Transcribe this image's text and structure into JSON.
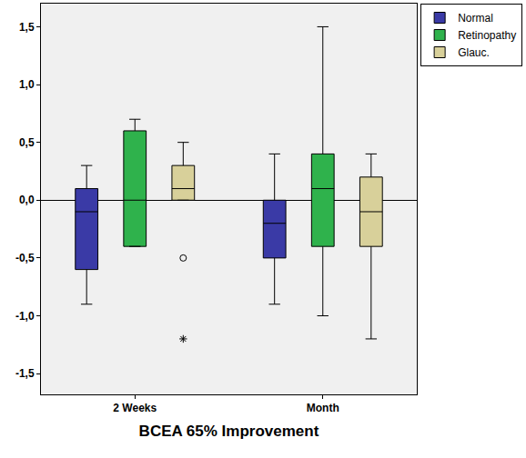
{
  "chart_data": {
    "type": "box",
    "x_label": "BCEA 65% Improvement",
    "categories": [
      "2 Weeks",
      "Month"
    ],
    "series": [
      {
        "name": "Normal",
        "color": "#3a3aa6",
        "upperfence": [
          0.3,
          0.4
        ],
        "q3": [
          0.1,
          0.0
        ],
        "median": [
          -0.1,
          -0.2
        ],
        "q1": [
          -0.6,
          -0.5
        ],
        "lowerfence": [
          -0.9,
          -0.9
        ],
        "outliers": [
          [],
          []
        ]
      },
      {
        "name": "Retinopathy",
        "color": "#2fb24c",
        "upperfence": [
          0.7,
          1.5
        ],
        "q3": [
          0.6,
          0.4
        ],
        "median": [
          0.0,
          0.1
        ],
        "q1": [
          -0.4,
          -0.4
        ],
        "lowerfence": [
          -0.4,
          -1.0
        ],
        "outliers": [
          [],
          []
        ]
      },
      {
        "name": "Glauc.",
        "color": "#d8d09a",
        "upperfence": [
          0.5,
          0.4
        ],
        "q3": [
          0.3,
          0.2
        ],
        "median": [
          0.1,
          -0.1
        ],
        "q1": [
          0.0,
          -0.4
        ],
        "lowerfence": [
          0.0,
          -1.2
        ],
        "outliers": [
          [
            {
              "value": -0.5,
              "marker": "circle"
            },
            {
              "value": -1.2,
              "marker": "star"
            }
          ],
          []
        ]
      }
    ],
    "ylim": [
      -1.68,
      1.7
    ],
    "yticks": [
      {
        "value": -1.5,
        "label": "-1,5"
      },
      {
        "value": -1.0,
        "label": "-1,0"
      },
      {
        "value": -0.5,
        "label": "-0,5"
      },
      {
        "value": 0.0,
        "label": "0,0"
      },
      {
        "value": 0.5,
        "label": "0,5"
      },
      {
        "value": 1.0,
        "label": "1,0"
      },
      {
        "value": 1.5,
        "label": "1,5"
      }
    ],
    "grid": false,
    "legend": "top-right"
  }
}
